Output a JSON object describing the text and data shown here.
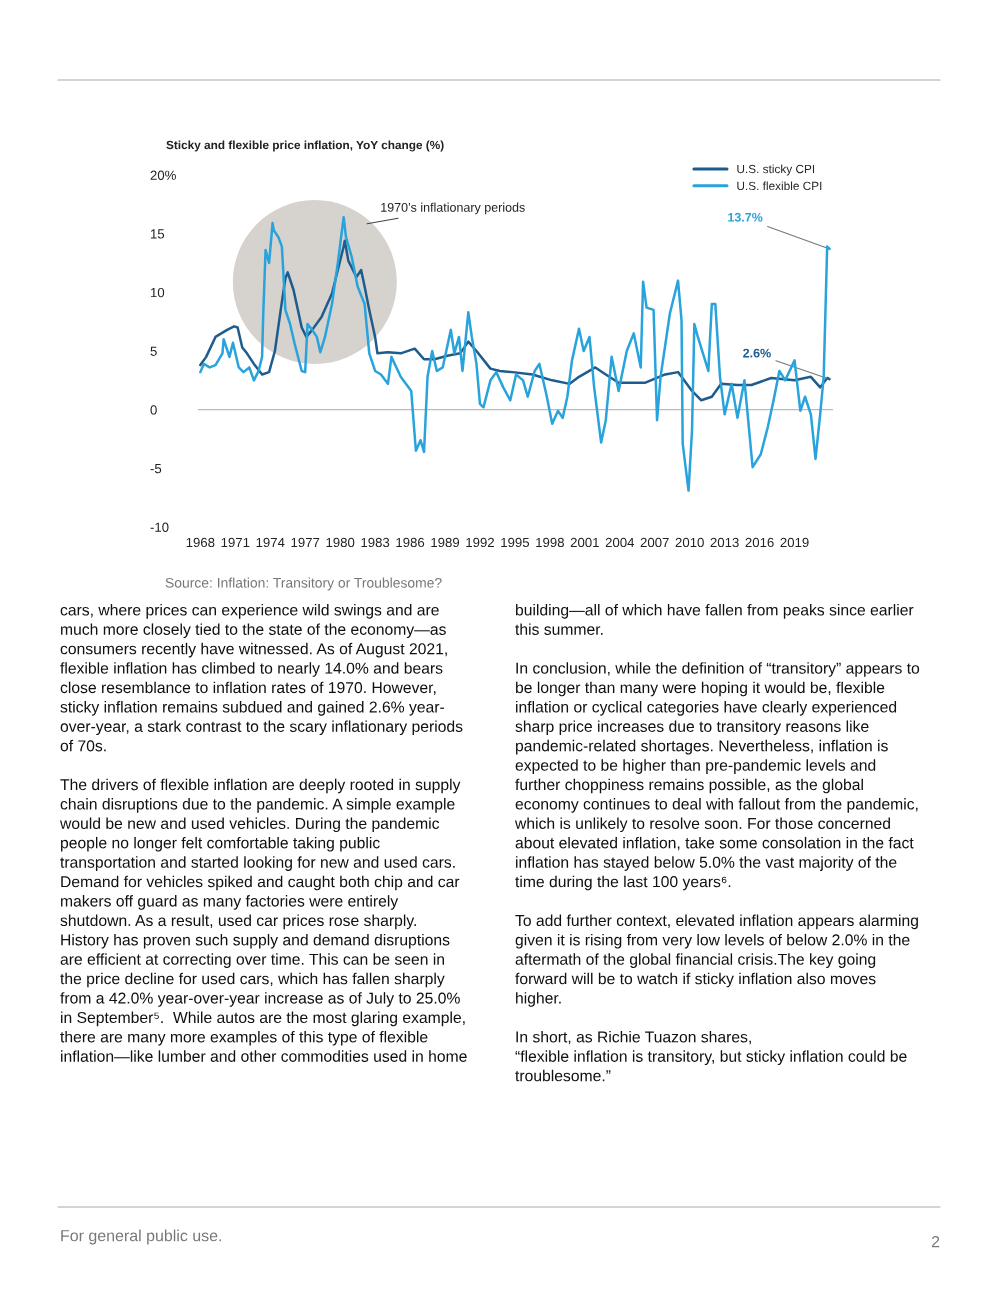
{
  "chart_data": {
    "type": "line",
    "title": "Sticky and flexible price inflation, YoY change (%)",
    "xlim": [
      1967.8,
      2022.3
    ],
    "ylim": [
      -10,
      20
    ],
    "xticks": [
      1968,
      1971,
      1974,
      1977,
      1980,
      1983,
      1986,
      1989,
      1992,
      1995,
      1998,
      2001,
      2004,
      2007,
      2010,
      2013,
      2016,
      2019
    ],
    "yticks": [
      {
        "value": 20,
        "label": "20%"
      },
      15,
      10,
      5,
      0,
      -5,
      -10
    ],
    "grid": false,
    "legend": "top right",
    "ref_lines": [
      {
        "axis": "y",
        "value": 0,
        "color": "#bbbbbb"
      }
    ],
    "series": [
      {
        "name": "U.S. sticky CPI",
        "color": "#1d5c8c",
        "x": [
          1968.0,
          1968.5,
          1969.3,
          1969.8,
          1970.3,
          1970.9,
          1971.2,
          1971.6,
          1972.0,
          1972.6,
          1973.3,
          1973.9,
          1974.4,
          1974.9,
          1975.3,
          1975.5,
          1976.0,
          1976.7,
          1977.1,
          1977.6,
          1978.4,
          1979.3,
          1979.8,
          1980.3,
          1980.4,
          1980.7,
          1981.4,
          1981.8,
          1982.1,
          1982.5,
          1983.0,
          1983.2,
          1984.1,
          1985.2,
          1986.4,
          1987.2,
          1988.1,
          1989.2,
          1990.3,
          1991.0,
          1991.7,
          1992.9,
          1993.7,
          1994.8,
          1996.5,
          1998.2,
          1999.7,
          2000.5,
          2001.9,
          2002.8,
          2003.9,
          2006.2,
          2007.9,
          2009.0,
          2010.2,
          2011.0,
          2011.9,
          2012.7,
          2014.1,
          2015.3,
          2017.0,
          2019.0,
          2020.4,
          2021.2,
          2021.8,
          2022.0
        ],
        "values": [
          3.8,
          4.5,
          6.2,
          6.5,
          6.8,
          7.1,
          7.0,
          5.3,
          4.8,
          3.9,
          3.0,
          3.2,
          5.0,
          8.5,
          11.2,
          11.7,
          10.2,
          7.0,
          6.2,
          6.8,
          7.9,
          9.9,
          11.9,
          13.9,
          14.4,
          12.7,
          11.3,
          11.9,
          10.5,
          8.5,
          6.2,
          4.8,
          4.9,
          4.8,
          5.2,
          4.3,
          4.3,
          4.6,
          4.8,
          5.8,
          5.0,
          3.5,
          3.3,
          3.2,
          3.0,
          2.5,
          2.2,
          2.8,
          3.6,
          3.0,
          2.3,
          2.3,
          3.0,
          3.2,
          1.6,
          0.8,
          1.1,
          2.2,
          2.1,
          2.1,
          2.7,
          2.5,
          2.8,
          1.9,
          2.7,
          2.6
        ]
      },
      {
        "name": "U.S. flexible CPI",
        "color": "#29a3dc",
        "x": [
          1968.0,
          1968.3,
          1968.8,
          1969.3,
          1969.9,
          1970.0,
          1970.5,
          1970.8,
          1971.3,
          1971.7,
          1972.2,
          1972.6,
          1973.0,
          1973.3,
          1973.4,
          1973.6,
          1973.9,
          1974.2,
          1974.3,
          1974.7,
          1975.0,
          1975.3,
          1975.7,
          1976.1,
          1976.7,
          1977.0,
          1977.2,
          1977.6,
          1978.0,
          1978.3,
          1978.7,
          1979.3,
          1979.8,
          1980.3,
          1980.5,
          1981.0,
          1981.5,
          1982.1,
          1982.5,
          1983.0,
          1983.5,
          1984.1,
          1984.4,
          1985.2,
          1986.1,
          1986.5,
          1986.9,
          1987.2,
          1987.5,
          1987.9,
          1988.3,
          1988.8,
          1989.5,
          1989.8,
          1990.2,
          1990.5,
          1991.0,
          1991.3,
          1991.7,
          1992.0,
          1992.3,
          1992.9,
          1993.4,
          1994.0,
          1994.6,
          1995.1,
          1995.7,
          1996.1,
          1996.7,
          1997.1,
          1997.7,
          1998.2,
          1998.7,
          1999.1,
          1999.5,
          1999.9,
          2000.5,
          2000.9,
          2001.4,
          2001.8,
          2002.4,
          2002.8,
          2003.3,
          2003.9,
          2004.6,
          2005.2,
          2005.8,
          2006.0,
          2006.3,
          2006.9,
          2007.2,
          2007.5,
          2008.3,
          2009.0,
          2009.3,
          2009.4,
          2009.9,
          2010.2,
          2010.4,
          2010.7,
          2011.6,
          2011.9,
          2012.2,
          2012.6,
          2013.0,
          2013.6,
          2014.1,
          2014.7,
          2015.4,
          2016.1,
          2016.7,
          2017.2,
          2017.7,
          2018.2,
          2019.0,
          2019.5,
          2019.9,
          2020.4,
          2020.8,
          2021.2,
          2021.5,
          2021.8,
          2022.0
        ],
        "values": [
          3.2,
          3.9,
          3.6,
          3.8,
          4.8,
          6.0,
          4.5,
          5.7,
          3.6,
          3.2,
          3.6,
          2.5,
          3.3,
          4.5,
          8.2,
          13.6,
          12.5,
          15.9,
          15.3,
          14.7,
          13.9,
          8.5,
          7.3,
          5.6,
          3.3,
          3.2,
          7.3,
          6.8,
          6.2,
          4.9,
          6.2,
          9.0,
          12.5,
          16.4,
          14.7,
          13.0,
          10.5,
          9.0,
          4.8,
          3.3,
          3.0,
          2.2,
          4.5,
          2.8,
          1.6,
          -3.5,
          -2.6,
          -3.6,
          2.8,
          5.0,
          3.3,
          3.6,
          6.8,
          4.8,
          6.2,
          3.3,
          8.3,
          6.2,
          3.9,
          0.5,
          0.2,
          2.5,
          3.2,
          1.9,
          0.8,
          3.0,
          2.5,
          1.1,
          3.3,
          3.9,
          1.3,
          -1.2,
          -0.1,
          -0.7,
          1.1,
          4.2,
          6.9,
          5.0,
          6.2,
          1.9,
          -2.8,
          -0.9,
          4.5,
          1.6,
          5.0,
          6.5,
          3.6,
          10.9,
          8.7,
          8.5,
          -0.9,
          2.8,
          8.2,
          11.0,
          7.6,
          -2.9,
          -6.9,
          -1.8,
          7.3,
          6.2,
          3.3,
          9.0,
          9.0,
          2.8,
          -0.4,
          2.2,
          -0.7,
          2.5,
          -4.9,
          -3.8,
          -1.5,
          0.8,
          3.3,
          2.5,
          4.2,
          -0.1,
          1.1,
          -0.4,
          -4.2,
          -0.4,
          2.8,
          13.9,
          13.7
        ]
      }
    ],
    "annotations": [
      "1970’s inflationary periods",
      {
        "text": "13.7%",
        "x": 2022.0,
        "y": 13.7
      },
      {
        "text": "2.6%",
        "x": 2022.0,
        "y": 2.6
      },
      "Source: Inflation: Transitory or Troublesome?",
      "cars, where prices can experience wild swings and are\nmuch more closely tied to the state of the economy—as\nconsumers recently have witnessed. As of August 2021,\nflexible inflation has climbed to nearly 14.0% and bears\nclose resemblance to inflation rates of 1970. However,\nsticky inflation remains subdued and gained 2.6% year-\nover-year, a stark contrast to the scary inflationary periods\nof 70s.\n\nThe drivers of flexible inflation are deeply rooted in supply\nchain disruptions due to the pandemic. A simple example\nwould be new and used vehicles. During the pandemic\npeople no longer felt comfortable taking public\ntransportation and started looking for new and used cars.\nDemand for vehicles spiked and caught both chip and car\nmakers off guard as many factories were entirely\nshutdown. As a result, used car prices rose sharply.\nHistory has proven such supply and demand disruptions\nare efficient at correcting over time. This can be seen in\nthe price decline for used cars, which has fallen sharply\nfrom a 42.0% year-over-year increase as of July to 25.0%\nin September⁵.  While autos are the most glaring example,\nthere are many more examples of this type of flexible\ninflation—like lumber and other commodities used in home",
      "building—all of which have fallen from peaks since earlier\nthis summer.\n\nIn conclusion, while the definition of “transitory” appears to\nbe longer than many were hoping it would be, flexible\ninflation or cyclical categories have clearly experienced\nsharp price increases due to transitory reasons like\npandemic-related shortages. Nevertheless, inflation is\nexpected to be higher than pre-pandemic levels and\nfurther choppiness remains possible, as the global\neconomy continues to deal with fallout from the pandemic,\nwhich is unlikely to resolve soon. For those concerned\nabout elevated inflation, take some consolation in the fact\ninflation has stayed below 5.0% the vast majority of the\ntime during the last 100 years⁶.\n\nTo add further context, elevated inflation appears alarming\ngiven it is rising from very low levels of below 2.0% in the\naftermath of the global financial crisis.The key going\nforward will be to watch if sticky inflation also moves\nhigher.\n\nIn short, as Richie Tuazon shares,\n“flexible inflation is transitory, but sticky inflation could be\ntroublesome.”",
      "For general public use.",
      "2"
    ]
  }
}
